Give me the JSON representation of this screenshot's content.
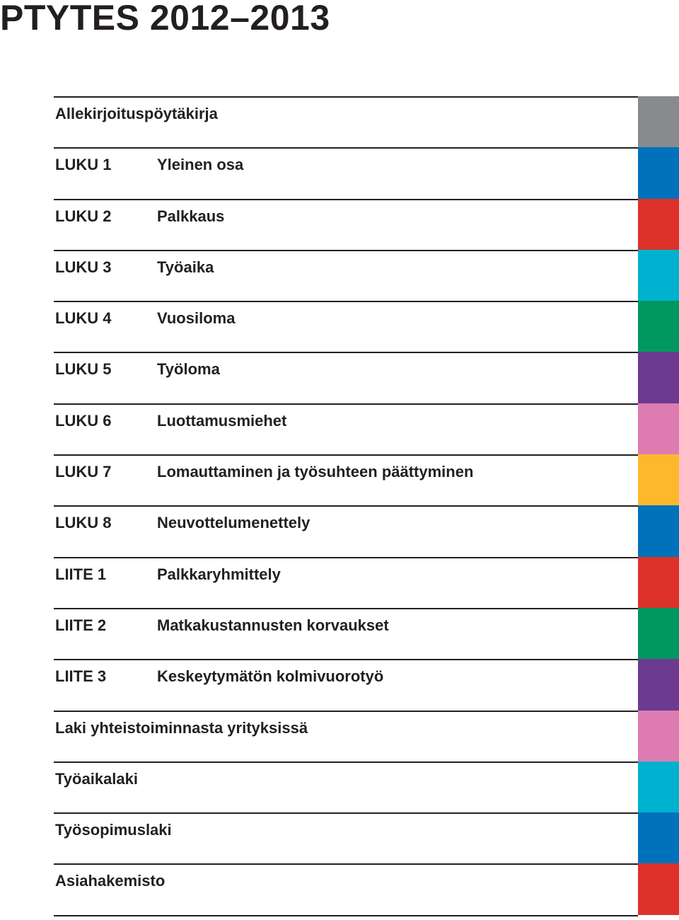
{
  "document": {
    "title": "PTYTES 2012–2013"
  },
  "entries": [
    {
      "full": "Allekirjoituspöytäkirja",
      "color": "#898a8c"
    },
    {
      "label": "LUKU 1",
      "desc": "Yleinen osa",
      "color": "#0072bc"
    },
    {
      "label": "LUKU 2",
      "desc": "Palkkaus",
      "color": "#dc3229"
    },
    {
      "label": "LUKU 3",
      "desc": "Työaika",
      "color": "#00b2cf"
    },
    {
      "label": "LUKU 4",
      "desc": "Vuosiloma",
      "color": "#00985f"
    },
    {
      "label": "LUKU 5",
      "desc": "Työloma",
      "color": "#6c3a91"
    },
    {
      "label": "LUKU 6",
      "desc": "Luottamusmiehet",
      "color": "#de7bb1"
    },
    {
      "label": "LUKU 7",
      "desc": "Lomauttaminen ja työsuhteen päättyminen",
      "color": "#fdb92b"
    },
    {
      "label": "LUKU 8",
      "desc": "Neuvottelumenettely",
      "color": "#0072bc"
    },
    {
      "label": "LIITE 1",
      "desc": "Palkkaryhmittely",
      "color": "#dc3229"
    },
    {
      "label": "LIITE 2",
      "desc": "Matkakustannusten korvaukset",
      "color": "#00985f"
    },
    {
      "label": "LIITE 3",
      "desc": "Keskeytymätön kolmivuorotyö",
      "color": "#6c3a91"
    },
    {
      "full": "Laki yhteistoiminnasta yrityksissä",
      "color": "#de7bb1"
    },
    {
      "full": "Työaikalaki",
      "color": "#00b2cf"
    },
    {
      "full": "Työsopimuslaki",
      "color": "#0072bc"
    },
    {
      "full": "Asiahakemisto",
      "color": "#dc3229"
    }
  ]
}
